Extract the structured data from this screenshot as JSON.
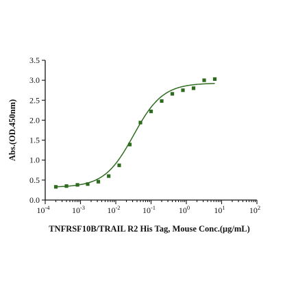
{
  "chart_data": {
    "type": "scatter",
    "xlabel": "TNFRSF10B/TRAIL R2 His Tag, Mouse Conc.(μg/mL)",
    "ylabel": "Abs.(OD.450nm)",
    "xscale": "log",
    "xlim": [
      0.0001,
      100
    ],
    "ylim": [
      0,
      3.5
    ],
    "x_ticks": [
      0.0001,
      0.001,
      0.01,
      0.1,
      1,
      10,
      100
    ],
    "x_tick_labels": [
      {
        "base": "10",
        "exp": "-4"
      },
      {
        "base": "10",
        "exp": "-3"
      },
      {
        "base": "10",
        "exp": "-2"
      },
      {
        "base": "10",
        "exp": "-1"
      },
      {
        "base": "10",
        "exp": "0"
      },
      {
        "base": "10",
        "exp": "1"
      },
      {
        "base": "10",
        "exp": "2"
      }
    ],
    "y_ticks": [
      0,
      0.5,
      1.0,
      1.5,
      2.0,
      2.5,
      3.0,
      3.5
    ],
    "y_tick_labels": [
      "0.0",
      "0.5",
      "1.0",
      "1.5",
      "2.0",
      "2.5",
      "3.0",
      "3.5"
    ],
    "grid": false,
    "series": [
      {
        "color": "#2e6b1f",
        "marker": "square",
        "points": [
          {
            "x": 0.0002,
            "y": 0.33
          },
          {
            "x": 0.0004,
            "y": 0.35
          },
          {
            "x": 0.00082,
            "y": 0.38
          },
          {
            "x": 0.0016,
            "y": 0.4
          },
          {
            "x": 0.0032,
            "y": 0.46
          },
          {
            "x": 0.0063,
            "y": 0.6
          },
          {
            "x": 0.0125,
            "y": 0.87
          },
          {
            "x": 0.025,
            "y": 1.39
          },
          {
            "x": 0.05,
            "y": 1.94
          },
          {
            "x": 0.1,
            "y": 2.22
          },
          {
            "x": 0.2,
            "y": 2.48
          },
          {
            "x": 0.4,
            "y": 2.66
          },
          {
            "x": 0.8,
            "y": 2.75
          },
          {
            "x": 1.6,
            "y": 2.8
          },
          {
            "x": 3.2,
            "y": 3.0
          },
          {
            "x": 6.4,
            "y": 3.03
          }
        ],
        "fit": {
          "bottom": 0.32,
          "top": 2.93,
          "ec50": 0.032,
          "hill": 1.05,
          "x_from": 0.0002,
          "x_to": 6.4
        }
      }
    ]
  }
}
